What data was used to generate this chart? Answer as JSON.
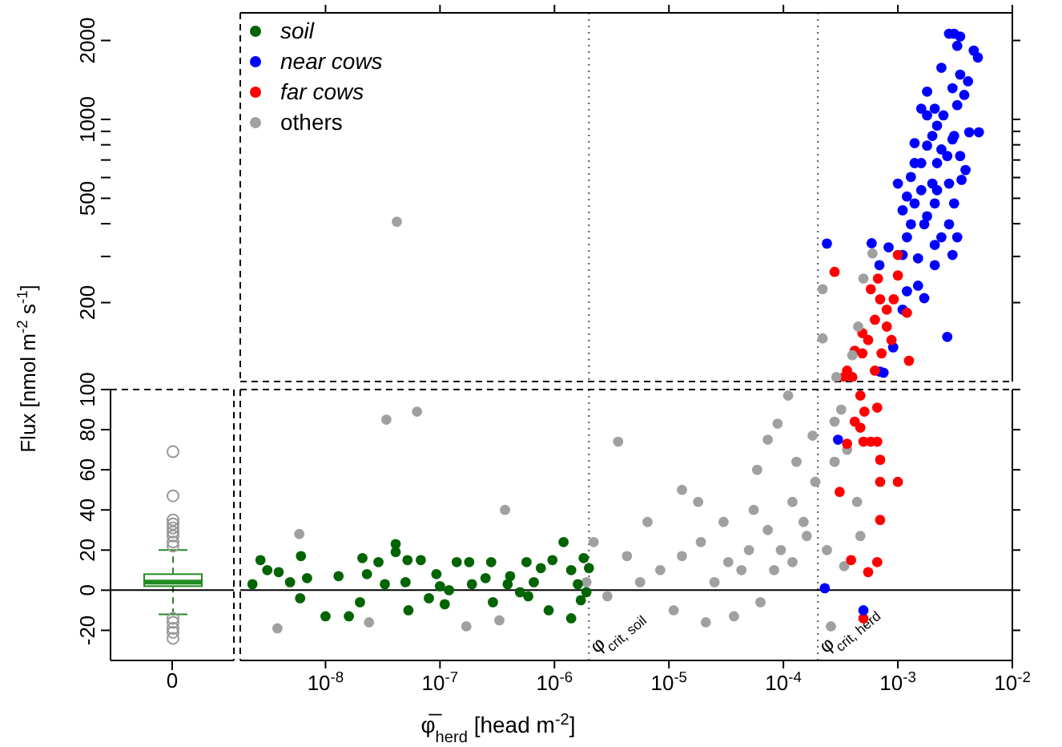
{
  "chart_data": [
    {
      "type": "box",
      "categories": [
        "0"
      ],
      "ylim": [
        -35,
        100
      ],
      "yticks": [
        -20,
        0,
        20,
        40,
        60,
        80,
        100
      ],
      "ylabel": "Flux [nmol  m$^{-2}$ s$^{-1}$]",
      "series": [
        {
          "color": "#228b22",
          "boxes": [
            {
              "low": -12,
              "q1": 2,
              "median": 4,
              "q3": 8,
              "high": 20,
              "outliers": [
                69,
                47,
                35,
                33,
                31,
                29,
                27,
                24,
                22,
                -14,
                -16,
                -19,
                -21,
                -24
              ]
            }
          ]
        }
      ],
      "ref_lines": [
        {
          "axis": "y",
          "value": 0,
          "color": "#000000",
          "line_style": "solid"
        }
      ]
    },
    {
      "type": "scatter",
      "log": "xy",
      "marker": "circle",
      "legend": "top left",
      "tick_labels": "y",
      "xlim": [
        1.8e-09,
        0.01
      ],
      "xticks": [
        {
          "value": 1e-08,
          "label": null
        },
        {
          "value": 1e-07,
          "label": null
        },
        {
          "value": 1e-06,
          "label": null
        },
        {
          "value": 1e-05,
          "label": null
        },
        {
          "value": 0.0001,
          "label": null
        },
        {
          "value": 0.001,
          "label": null
        },
        {
          "value": 0.01,
          "label": null
        }
      ],
      "ylim": [
        100,
        2550
      ],
      "yticks": [
        200,
        {
          "value": 300,
          "label": null
        },
        {
          "value": 400,
          "label": null
        },
        500,
        {
          "value": 600,
          "label": null
        },
        {
          "value": 700,
          "label": null
        },
        {
          "value": 800,
          "label": null
        },
        {
          "value": 900,
          "label": null
        },
        1000,
        2000
      ],
      "ref_lines": [
        {
          "axis": "x",
          "value": 2e-06,
          "color": "#555555",
          "line_style": "dotted"
        },
        {
          "axis": "x",
          "value": 0.0002,
          "color": "#555555",
          "line_style": "dotted"
        }
      ],
      "series": [
        {
          "name": "soil",
          "color": "#006400"
        },
        {
          "name": "near cows",
          "color": "#0000ff",
          "x": [
            0.00024,
            0.00059,
            0.00083,
            0.00069,
            0.0011,
            0.0012,
            0.0017,
            0.0027,
            0.00091,
            0.00075,
            0.001,
            0.0013,
            0.0014,
            0.0012,
            0.0015,
            0.0018,
            0.0022,
            0.0024,
            0.0027,
            0.0031,
            0.002,
            0.0016,
            0.0014,
            0.0022,
            0.0025,
            0.0031,
            0.0035,
            0.0039,
            0.0033,
            0.003,
            0.0024,
            0.0035,
            0.0041,
            0.0038,
            0.0031,
            0.0035,
            0.0033,
            0.0028,
            0.0046,
            0.005,
            0.0051,
            0.0042,
            0.0018,
            0.0021,
            0.0016,
            0.0018,
            0.0036,
            0.0012,
            0.0017,
            0.0021,
            0.0028,
            0.0033,
            0.0022,
            0.002,
            0.0028,
            0.0014,
            0.0011,
            0.0016,
            0.0021,
            0.0024,
            0.0018,
            0.003,
            0.0013,
            0.0015,
            0.0021,
            0.003,
            0.0011,
            0.0007
          ],
          "values": [
            336,
            337,
            325,
            278,
            304,
            221,
            208,
            148,
            135,
            108,
            569,
            603,
            478,
            355,
            295,
            427,
            537,
            355,
            725,
            478,
            865,
            681,
            812,
            946,
            1036,
            865,
            725,
            641,
            1133,
            1315,
            1574,
            1482,
            1397,
            1240,
            2123,
            2071,
            1908,
            2123,
            1830,
            1722,
            893,
            893,
            1276,
            1099,
            1099,
            1036,
            588,
            508,
            398,
            332,
            398,
            355,
            681,
            569,
            569,
            681,
            450,
            537,
            478,
            768,
            794,
            839,
            398,
            232,
            278,
            304,
            188,
            109
          ]
        },
        {
          "name": "far cows",
          "color": "#ff0000",
          "x": [
            0.00028,
            0.00067,
            0.001,
            0.001,
            0.0007,
            0.0008,
            0.00063,
            0.00055,
            0.00049,
            0.00042,
            0.00072,
            0.00088,
            0.0012,
            0.00125,
            0.00036,
            0.00063,
            0.00092,
            0.00049,
            0.0008,
            0.00058,
            0.00034,
            0.0004
          ],
          "values": [
            262,
            247,
            254,
            304,
            206,
            162,
            172,
            144,
            128,
            131,
            128,
            144,
            183,
            120,
            110,
            110,
            206,
            153,
            188,
            225,
            104,
            104
          ]
        },
        {
          "name": "others",
          "color": "#a0a0a0",
          "x": [
            4.2e-08,
            0.00022,
            0.00022,
            0.0006,
            0.0005,
            0.00045,
            0.0004,
            0.00029
          ],
          "values": [
            407,
            225,
            146,
            308,
            247,
            162,
            126,
            104
          ]
        }
      ]
    },
    {
      "type": "scatter",
      "log": "x",
      "marker": "circle",
      "tick_labels": "x",
      "xlabel": "φ̅$_{herd}$ [head m$^{-2}$]",
      "xlim": [
        1.8e-09,
        0.01
      ],
      "xticks": [
        {
          "value": 1e-08,
          "label": "10$^{-8}$"
        },
        {
          "value": 1e-07,
          "label": "10$^{-7}$"
        },
        {
          "value": 1e-06,
          "label": "10$^{-6}$"
        },
        {
          "value": 1e-05,
          "label": "10$^{-5}$"
        },
        {
          "value": 0.0001,
          "label": "10$^{-4}$"
        },
        {
          "value": 0.001,
          "label": "10$^{-3}$"
        },
        {
          "value": 0.01,
          "label": "10$^{-2}$"
        }
      ],
      "ylim": [
        -35,
        100
      ],
      "yticks": [
        -20,
        0,
        20,
        40,
        60,
        80,
        100
      ],
      "ref_lines": [
        {
          "axis": "x",
          "value": 2e-06,
          "label": "φ$_{crit, soil}$",
          "color": "#555555",
          "line_style": "dotted"
        },
        {
          "axis": "x",
          "value": 0.0002,
          "label": "φ$_{crit, herd}$",
          "color": "#555555",
          "line_style": "dotted"
        },
        {
          "axis": "y",
          "value": 0,
          "color": "#000000",
          "line_style": "solid"
        }
      ],
      "series": [
        {
          "color": "#a0a0a0",
          "x": [
            3.4e-08,
            6.3e-08,
            3.6e-06,
            3.7e-07,
            5.9e-09,
            3.8e-09,
            2.4e-08,
            1.7e-07,
            3.3e-07,
            6.5e-06,
            1.8e-05,
            5.9e-05,
            7.3e-05,
            8.9e-05,
            0.00011,
            0.00013,
            0.00018,
            0.00019,
            0.00016,
            0.00012,
            9.5e-05,
            7.3e-05,
            5e-05,
            4.3e-05,
            3.3e-05,
            2.5e-05,
            1.9e-05,
            1.3e-05,
            8.4e-06,
            5.6e-06,
            4.3e-06,
            2.9e-06,
            1.1e-05,
            2.1e-05,
            3.7e-05,
            6.3e-05,
            8.3e-05,
            0.00012,
            0.00015,
            0.00028,
            0.00036,
            0.00044,
            0.00047,
            0.00034,
            0.00026,
            1.3e-05,
            3e-05,
            5.5e-05,
            1.9e-06,
            2.2e-06,
            0.00028,
            0.00032,
            0.00024
          ],
          "values": [
            85,
            89,
            74,
            40,
            28,
            -19,
            -16,
            -18,
            -15,
            34,
            44,
            60,
            75,
            83,
            97,
            64,
            77,
            54,
            27,
            44,
            20,
            30,
            20,
            10,
            14,
            4,
            24,
            17,
            10,
            4,
            17,
            -3,
            -10,
            -16,
            -13,
            -6,
            10,
            14,
            34,
            84,
            70,
            44,
            27,
            12,
            -18,
            50,
            34,
            40,
            4,
            24,
            64,
            90,
            20
          ]
        },
        {
          "color": "#006400",
          "x": [
            2.7e-09,
            2.3e-09,
            3.1e-09,
            3.9e-09,
            6.1e-09,
            6.9e-09,
            4.9e-09,
            6e-09,
            1e-08,
            1.6e-08,
            1.3e-08,
            2.1e-08,
            2.3e-08,
            2.9e-08,
            2e-08,
            4.1e-08,
            4.1e-08,
            5.2e-08,
            5e-08,
            5.3e-08,
            6.8e-08,
            8e-08,
            9.3e-08,
            1e-07,
            1.1e-07,
            1.4e-07,
            1.8e-07,
            1.9e-07,
            2.5e-07,
            2.8e-07,
            2.9e-07,
            3.9e-07,
            4.1e-07,
            5.7e-07,
            5.9e-07,
            6.6e-07,
            8.9e-07,
            9.6e-07,
            1.2e-06,
            1.4e-06,
            1.4e-06,
            1.6e-06,
            1.8e-06,
            1.9e-06,
            1.7e-06,
            2e-06,
            7.6e-07,
            3.3e-08,
            1.2e-07,
            5e-07
          ],
          "values": [
            15,
            3,
            10,
            9,
            17,
            6,
            4,
            -4,
            -13,
            -13,
            7,
            16,
            8,
            14,
            -6,
            23,
            19,
            15,
            4,
            -10,
            15,
            -4,
            8,
            2,
            -7,
            14,
            14,
            3,
            6,
            14,
            -6,
            3,
            7,
            14,
            -3,
            4,
            -10,
            15,
            24,
            -14,
            10,
            3,
            16,
            -1,
            -5,
            11,
            11,
            3,
            0,
            -1
          ]
        },
        {
          "color": "#ff0000",
          "x": [
            0.00047,
            0.00042,
            0.00051,
            0.00066,
            0.00036,
            0.0005,
            0.00058,
            0.00066,
            0.00047,
            0.0007,
            0.001,
            0.0007,
            0.00031,
            0.0007,
            0.00039,
            0.00055,
            0.00066,
            0.0005
          ],
          "values": [
            97,
            84,
            89,
            91,
            73,
            74,
            74,
            74,
            81,
            65,
            54,
            54,
            49,
            35,
            15,
            9,
            14,
            -14
          ]
        },
        {
          "color": "#0000ff",
          "x": [
            0.0003,
            0.00023,
            0.0005
          ],
          "values": [
            75,
            1,
            -10
          ]
        }
      ]
    }
  ]
}
